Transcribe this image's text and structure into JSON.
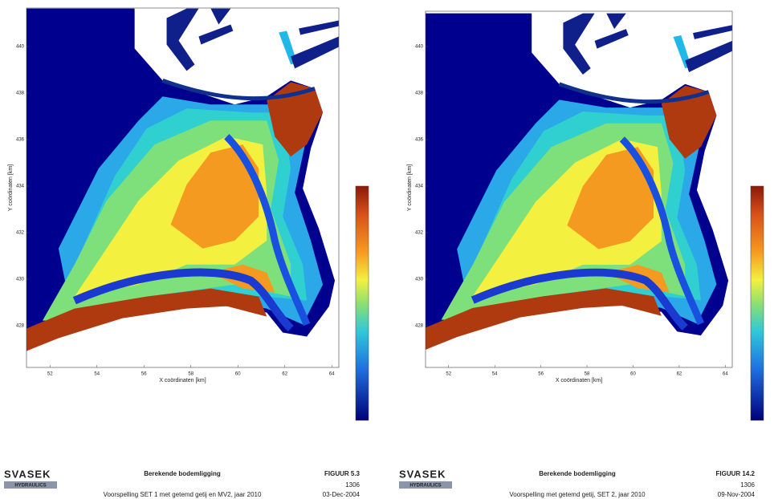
{
  "panels": [
    {
      "x_ticks": [
        "52",
        "54",
        "56",
        "58",
        "60",
        "62",
        "64"
      ],
      "y_ticks": [
        "440",
        "438",
        "436",
        "434",
        "432",
        "430",
        "428"
      ],
      "x_label": "X coördinaten [km]",
      "y_label": "Y coördinaten [km]",
      "logo": {
        "name": "SVASEK",
        "sub": "HYDRAULICS"
      },
      "footer": {
        "title": "Berekende bodemligging",
        "subtitle": "Voorspelling SET 1 met getemd getij en MV2, jaar 2010",
        "figure": "FIGUUR 5.3",
        "number": "1306",
        "date": "03-Dec-2004"
      }
    },
    {
      "x_ticks": [
        "52",
        "54",
        "56",
        "58",
        "60",
        "62",
        "64"
      ],
      "y_ticks": [
        "440",
        "438",
        "436",
        "434",
        "432",
        "430",
        "428"
      ],
      "x_label": "X coördinaten [km]",
      "y_label": "Y coördinaten [km]",
      "logo": {
        "name": "SVASEK",
        "sub": "HYDRAULICS"
      },
      "footer": {
        "title": "Berekende bodemligging",
        "subtitle": "Voorspelling met getemd getij, SET 2, jaar 2010",
        "figure": "FIGUUR 14.2",
        "number": "1306",
        "date": "09-Nov-2004"
      }
    }
  ]
}
